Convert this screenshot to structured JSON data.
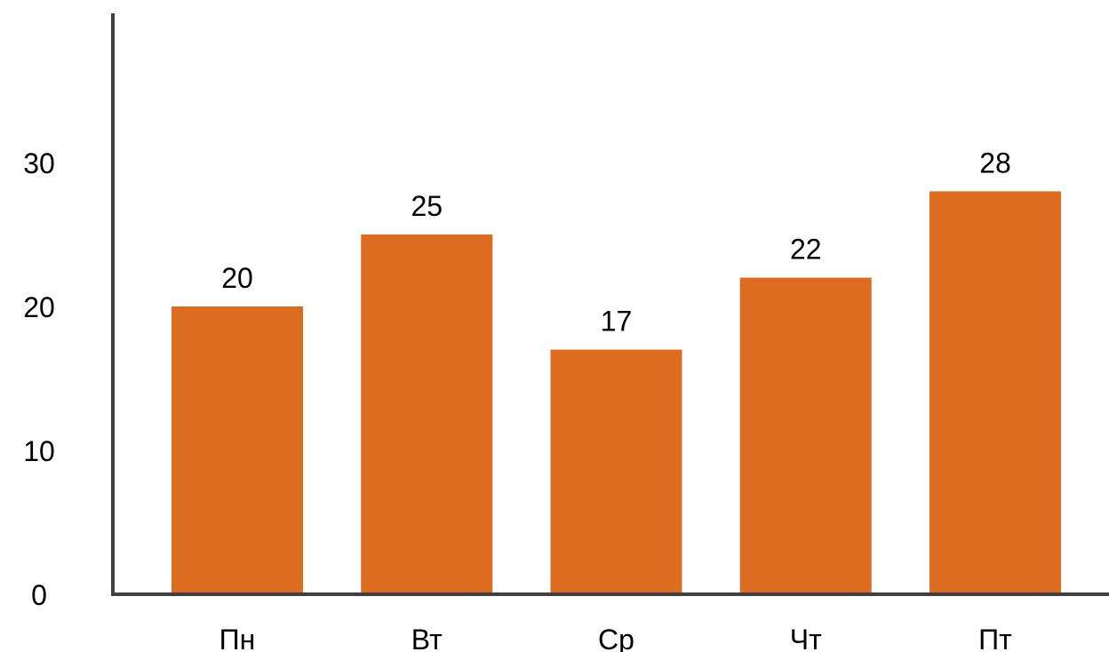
{
  "chart_data": {
    "type": "bar",
    "categories": [
      "Пн",
      "Вт",
      "Ср",
      "Чт",
      "Пт"
    ],
    "values": [
      20,
      25,
      17,
      22,
      28
    ],
    "data_labels": [
      "20",
      "25",
      "17",
      "22",
      "28"
    ],
    "title": "",
    "xlabel": "",
    "ylabel": "",
    "ylim": [
      0,
      40
    ],
    "yticks": [
      0,
      10,
      20,
      30
    ],
    "ytick_labels": [
      "0",
      "10",
      "20",
      "30"
    ],
    "grid": false,
    "legend": "none",
    "colors": {
      "bar": "#DD6B20",
      "axis": "#404040",
      "text": "#000000"
    }
  }
}
